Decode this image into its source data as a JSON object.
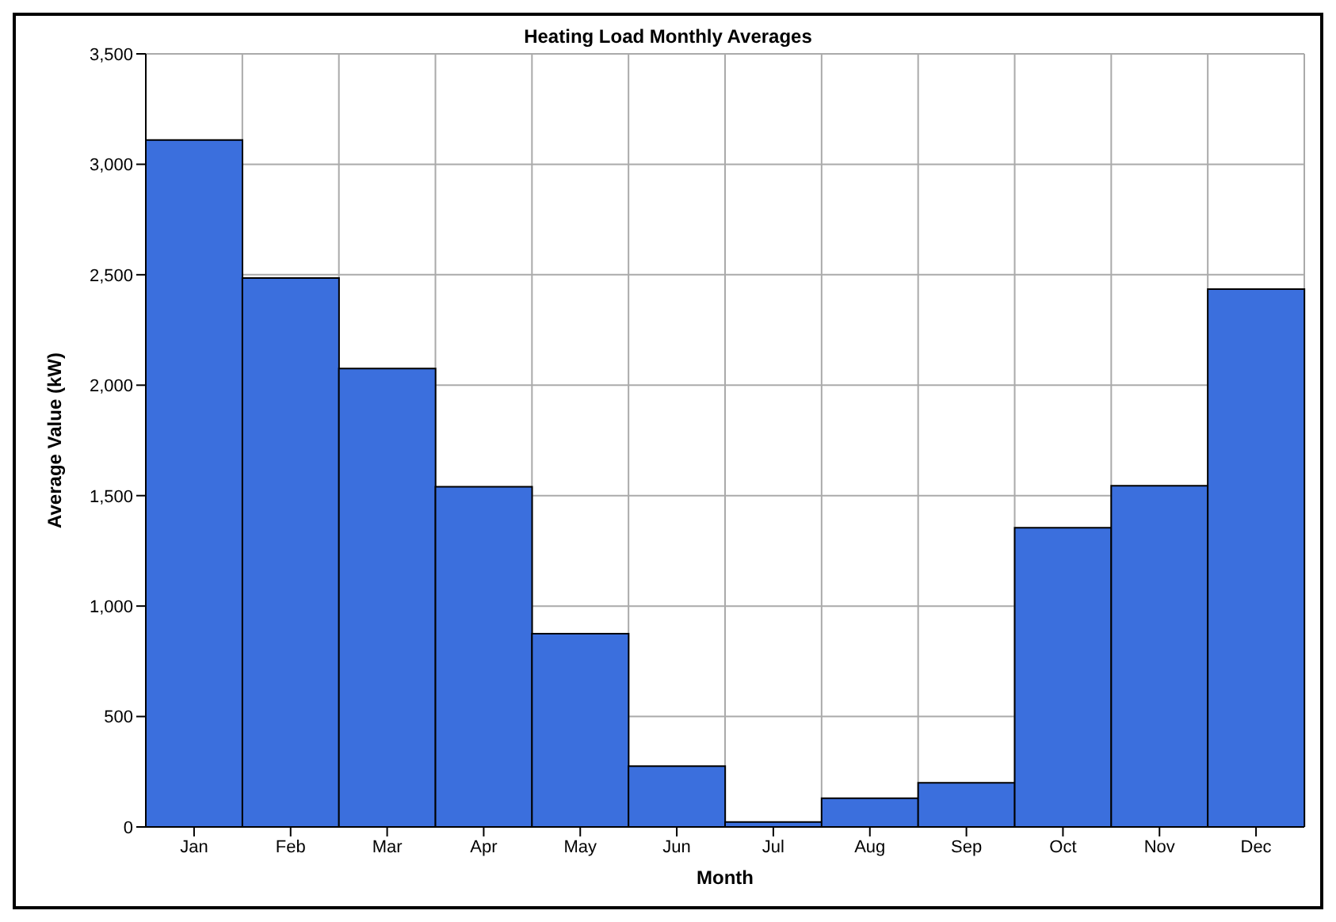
{
  "chart_data": {
    "type": "bar",
    "title": "Heating Load Monthly Averages",
    "xlabel": "Month",
    "ylabel": "Average Value (kW)",
    "categories": [
      "Jan",
      "Feb",
      "Mar",
      "Apr",
      "May",
      "Jun",
      "Jul",
      "Aug",
      "Sep",
      "Oct",
      "Nov",
      "Dec"
    ],
    "values": [
      3110,
      2485,
      2075,
      1540,
      875,
      275,
      22,
      130,
      200,
      1355,
      1545,
      2435
    ],
    "color": "#3b6fdd",
    "ylim": [
      0,
      3500
    ],
    "yticks": [
      {
        "value": 0,
        "label": "0"
      },
      {
        "value": 500,
        "label": "500"
      },
      {
        "value": 1000,
        "label": "1,000"
      },
      {
        "value": 1500,
        "label": "1,500"
      },
      {
        "value": 2000,
        "label": "2,000"
      },
      {
        "value": 2500,
        "label": "2,500"
      },
      {
        "value": 3000,
        "label": "3,000"
      },
      {
        "value": 3500,
        "label": "3,500"
      }
    ],
    "grid": true
  }
}
